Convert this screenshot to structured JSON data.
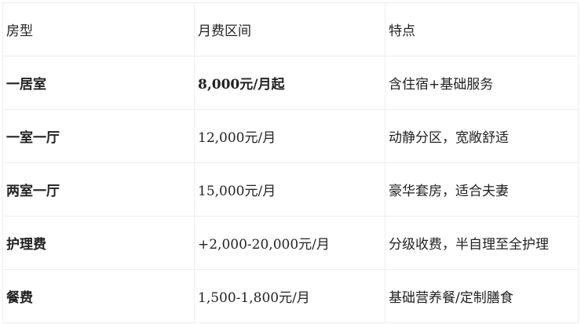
{
  "table": {
    "headers": [
      "房型",
      "月费区间",
      "特点"
    ],
    "rows": [
      {
        "type": "一居室",
        "fee": "8,000元/月起",
        "feature": "含住宿+基础服务"
      },
      {
        "type": "一室一厅",
        "fee": "12,000元/月",
        "feature": "动静分区，宽敞舒适"
      },
      {
        "type": "两室一厅",
        "fee": "15,000元/月",
        "feature": "豪华套房，适合夫妻"
      },
      {
        "type": "护理费",
        "fee": "+2,000-20,000元/月",
        "feature": "分级收费，半自理至全护理"
      },
      {
        "type": "餐费",
        "fee": "1,500-1,800元/月",
        "feature": "基础营养餐/定制膳食"
      }
    ]
  }
}
